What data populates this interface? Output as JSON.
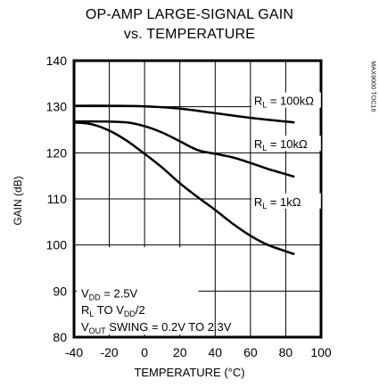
{
  "chart_data": {
    "type": "line",
    "title": "OP-AMP LARGE-SIGNAL GAIN",
    "subtitle": "vs. TEMPERATURE",
    "xlabel": "TEMPERATURE (°C)",
    "ylabel": "GAIN (dB)",
    "xlim": [
      -40,
      100
    ],
    "ylim": [
      80,
      140
    ],
    "xticks": [
      -40,
      -20,
      0,
      20,
      40,
      60,
      80,
      100
    ],
    "yticks": [
      80,
      90,
      100,
      110,
      120,
      130,
      140
    ],
    "grid": true,
    "series": [
      {
        "name": "RL = 100kΩ",
        "label_main": "R",
        "label_sub": "L",
        "label_rest": " = 100kΩ",
        "x": [
          -40,
          -20,
          0,
          20,
          40,
          60,
          85
        ],
        "y": [
          130.2,
          130.2,
          130.1,
          129.6,
          128.6,
          127.6,
          126.6
        ]
      },
      {
        "name": "RL = 10kΩ",
        "label_main": "R",
        "label_sub": "L",
        "label_rest": " = 10kΩ",
        "x": [
          -40,
          -25,
          -10,
          0,
          10,
          20,
          30,
          40,
          50,
          60,
          70,
          85
        ],
        "y": [
          126.8,
          126.8,
          126.6,
          125.8,
          124.4,
          122.5,
          120.6,
          119.8,
          119.0,
          117.8,
          116.5,
          114.8
        ]
      },
      {
        "name": "RL = 1kΩ",
        "label_main": "R",
        "label_sub": "L",
        "label_rest": " = 1kΩ",
        "x": [
          -40,
          -30,
          -20,
          -10,
          0,
          10,
          20,
          30,
          40,
          50,
          60,
          70,
          85
        ],
        "y": [
          126.6,
          126.2,
          124.8,
          122.6,
          119.8,
          116.8,
          113.4,
          110.4,
          107.6,
          104.6,
          102.0,
          100.0,
          98.0
        ]
      }
    ],
    "annotation": {
      "line1_main": "V",
      "line1_sub": "DD",
      "line1_rest": " = 2.5V",
      "line2_main": "R",
      "line2_sub": "L",
      "line2_mid": " TO V",
      "line2_sub2": "DD",
      "line2_rest": "/2",
      "line3_main": "V",
      "line3_sub": "OUT",
      "line3_rest": " SWING = 0.2V TO 2.3V"
    },
    "figure_id": "MAX9000 TOC16"
  }
}
